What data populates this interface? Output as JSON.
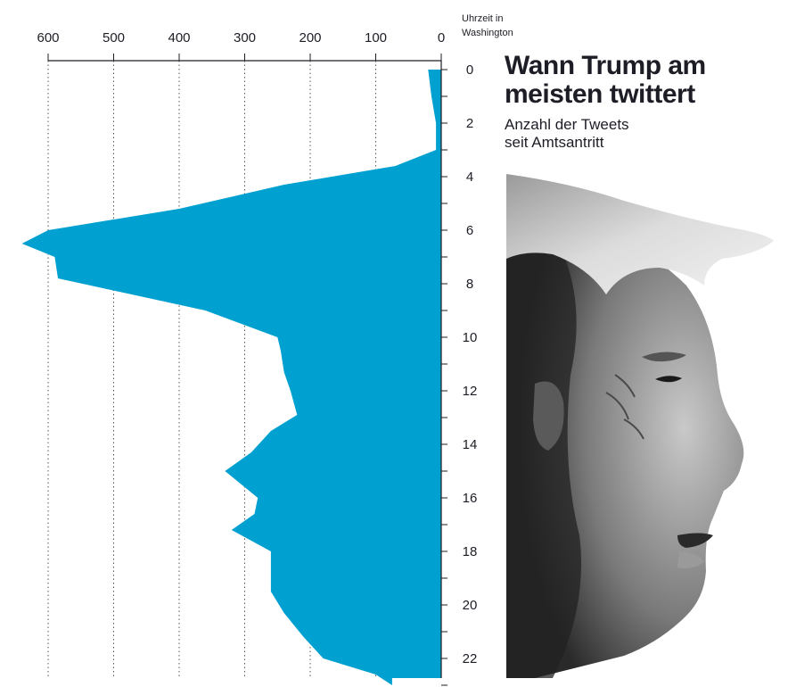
{
  "header": {
    "title": "Wann Trump am meisten twittert",
    "subtitle_line1": "Anzahl der Tweets",
    "subtitle_line2": "seit Amtsantritt"
  },
  "chart_data": {
    "type": "area",
    "orientation": "horizontal",
    "title": "Wann Trump am meisten twittert",
    "subtitle": "Anzahl der Tweets seit Amtsantritt",
    "ylabel_line1": "Uhrzeit in",
    "ylabel_line2": "Washington",
    "xlabel": "",
    "x_axis_reversed": true,
    "xlim": [
      0,
      600
    ],
    "x_ticks": [
      600,
      500,
      400,
      300,
      200,
      100,
      0
    ],
    "ylim": [
      0,
      23
    ],
    "y_ticks": [
      0,
      2,
      4,
      6,
      8,
      10,
      12,
      14,
      16,
      18,
      20,
      22
    ],
    "grid": "vertical-dotted",
    "color": "#00a0d1",
    "series": [
      {
        "hours": [
          0,
          1,
          2,
          3,
          3.6,
          4.3,
          5.2,
          6.0,
          6.5,
          7.0,
          7.8,
          9.0,
          10.0,
          10.5,
          11.3,
          12.0,
          12.9,
          13.5,
          14.3,
          15.0,
          16.0,
          16.6,
          17.2,
          18.0,
          18.6,
          19.5,
          20.3,
          21.2,
          22.0,
          22.6,
          23.0
        ],
        "tweets": [
          20,
          15,
          8,
          8,
          70,
          240,
          400,
          600,
          640,
          590,
          585,
          360,
          250,
          245,
          240,
          230,
          220,
          260,
          290,
          330,
          280,
          285,
          320,
          260,
          260,
          260,
          240,
          210,
          180,
          100,
          75
        ]
      }
    ]
  },
  "photo": {
    "name": "trump-profile-portrait"
  }
}
